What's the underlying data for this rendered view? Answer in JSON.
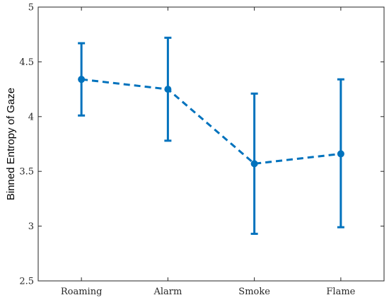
{
  "chart_data": {
    "type": "line",
    "title": "",
    "xlabel": "",
    "ylabel": "Binned Entropy of Gaze",
    "categories": [
      "Roaming",
      "Alarm",
      "Smoke",
      "Flame"
    ],
    "ylim": [
      2.5,
      5
    ],
    "yticks": [
      2.5,
      3,
      3.5,
      4,
      4.5,
      5
    ],
    "ytick_labels": [
      "2.5",
      "3",
      "3.5",
      "4",
      "4.5",
      "5"
    ],
    "grid": false,
    "legend": "none",
    "line_style": "dashed",
    "series": [
      {
        "values": [
          4.34,
          4.25,
          3.57,
          3.66
        ],
        "error_low": [
          4.01,
          3.78,
          2.93,
          2.99
        ],
        "error_high": [
          4.67,
          4.72,
          4.21,
          4.34
        ],
        "color": "#0072BD"
      }
    ]
  }
}
